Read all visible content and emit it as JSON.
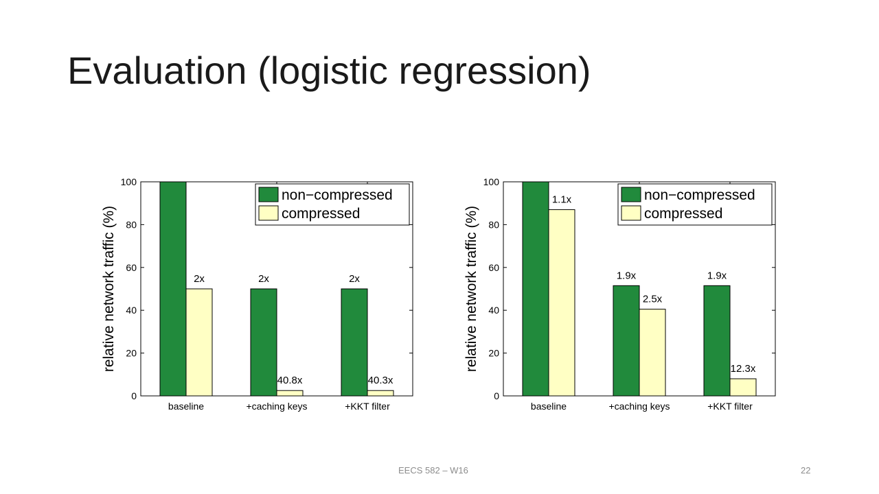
{
  "slide": {
    "title": "Evaluation (logistic regression)",
    "footer_text": "EECS 582 – W16",
    "page_number": "22"
  },
  "colors": {
    "non_compressed": "#218a3c",
    "compressed": "#ffffc4",
    "axis": "#000000",
    "grid": "#c8c8c8"
  },
  "chart_data": [
    {
      "type": "bar",
      "categories": [
        "baseline",
        "+caching keys",
        "+KKT filter"
      ],
      "series": [
        {
          "name": "non−compressed",
          "values": [
            100,
            50,
            50
          ],
          "labels": [
            "",
            "2x",
            "2x"
          ]
        },
        {
          "name": "compressed",
          "values": [
            50,
            2.5,
            2.5
          ],
          "labels": [
            "2x",
            "40.8x",
            "40.3x"
          ]
        }
      ],
      "ylabel": "relative network traffic (%)",
      "ylim": [
        0,
        100
      ],
      "yticks": [
        0,
        20,
        40,
        60,
        80,
        100
      ],
      "legend": "top-right",
      "grid": false
    },
    {
      "type": "bar",
      "categories": [
        "baseline",
        "+caching keys",
        "+KKT filter"
      ],
      "series": [
        {
          "name": "non−compressed",
          "values": [
            100,
            51.5,
            51.5
          ],
          "labels": [
            "",
            "1.9x",
            "1.9x"
          ]
        },
        {
          "name": "compressed",
          "values": [
            87,
            40.5,
            8
          ],
          "labels": [
            "1.1x",
            "2.5x",
            "12.3x"
          ]
        }
      ],
      "ylabel": "relative network traffic (%)",
      "ylim": [
        0,
        100
      ],
      "yticks": [
        0,
        20,
        40,
        60,
        80,
        100
      ],
      "legend": "top-right",
      "grid": false
    }
  ]
}
